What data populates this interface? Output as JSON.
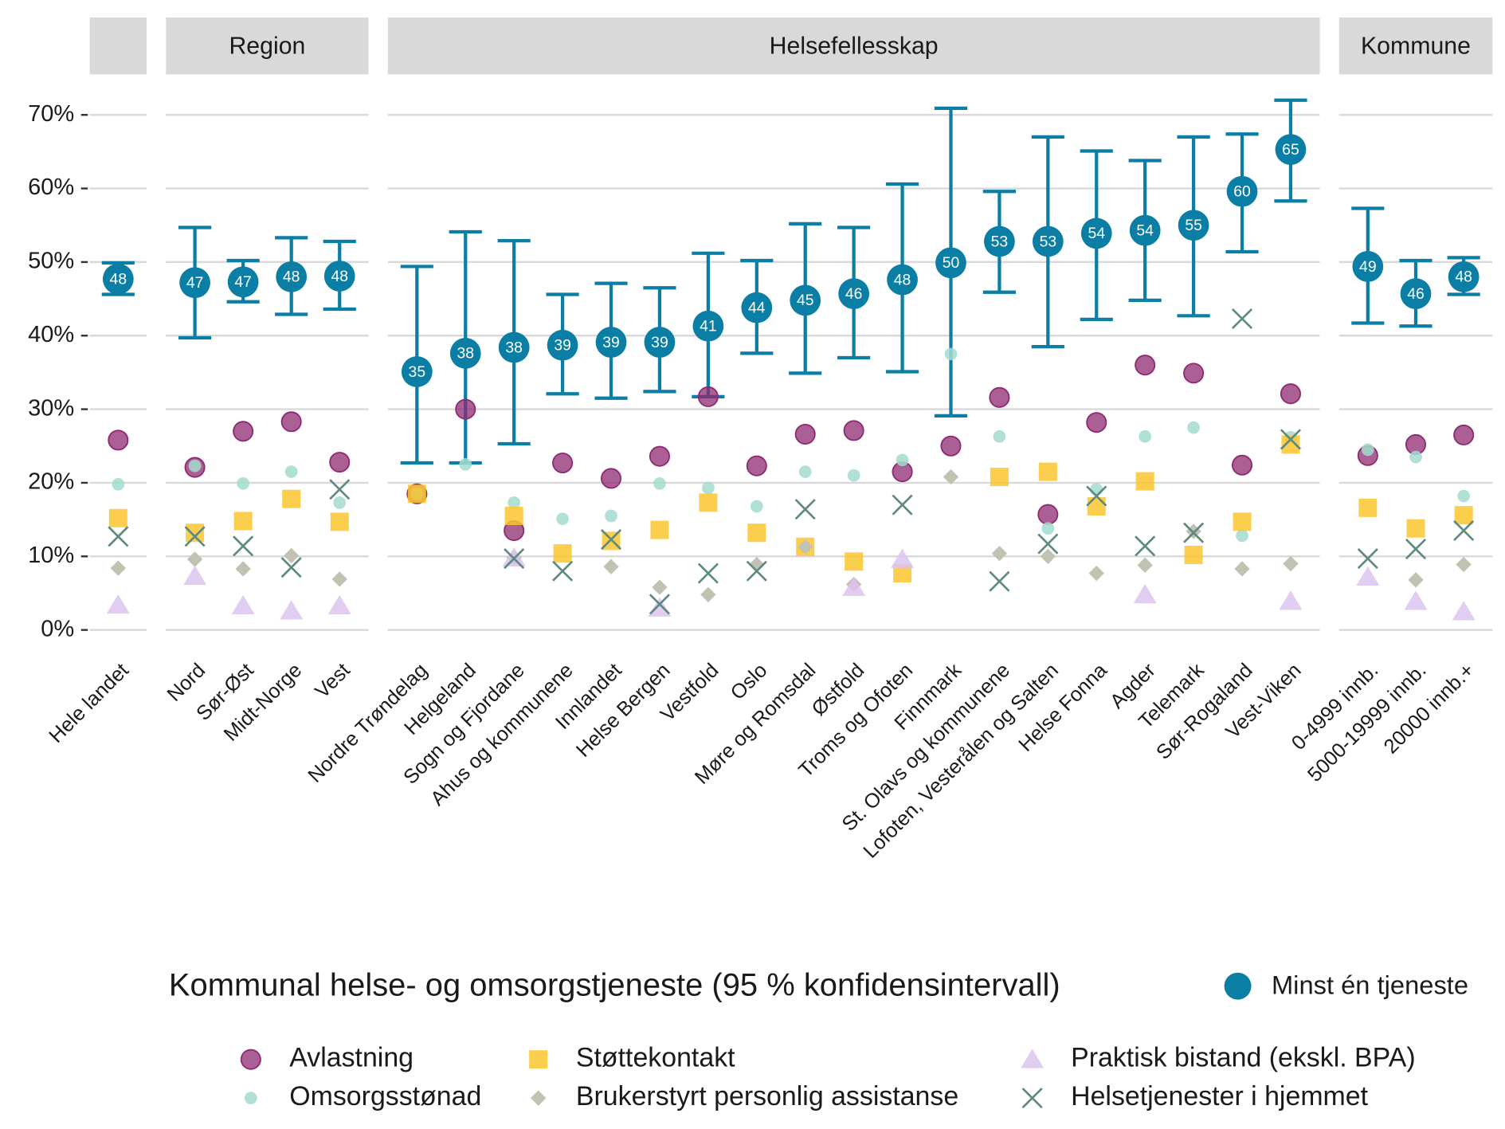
{
  "chart_data": {
    "type": "faceted-point",
    "ylim": [
      -3.3,
      73.8
    ],
    "yticks": [
      {
        "value": 0,
        "label": "0%"
      },
      {
        "value": 10,
        "label": "10%"
      },
      {
        "value": 20,
        "label": "20%"
      },
      {
        "value": 30,
        "label": "30%"
      },
      {
        "value": 40,
        "label": "40%"
      },
      {
        "value": 50,
        "label": "50%"
      },
      {
        "value": 60,
        "label": "60%"
      },
      {
        "value": 70,
        "label": "70%"
      }
    ],
    "grid": true,
    "panels": [
      {
        "categories": [
          "Hele landet"
        ]
      },
      {
        "title": "Region",
        "categories": [
          "Nord",
          "Sør-Øst",
          "Midt-Norge",
          "Vest"
        ]
      },
      {
        "title": "Helsefellesskap",
        "categories": [
          "Nordre Trøndelag",
          "Helgeland",
          "Sogn og Fjordane",
          "Ahus og kommunene",
          "Innlandet",
          "Helse Bergen",
          "Vestfold",
          "Oslo",
          "Møre og Romsdal",
          "Østfold",
          "Troms og Ofoten",
          "Finnmark",
          "St. Olavs og kommunene",
          "Lofoten, Vesterålen og Salten",
          "Helse Fonna",
          "Agder",
          "Telemark",
          "Sør-Rogaland",
          "Vest-Viken"
        ]
      },
      {
        "title": "Kommune",
        "categories": [
          "0-4999 innb.",
          "5000-19999 innb.",
          "20000 innb.+"
        ]
      }
    ],
    "legend_title": "Kommunal helse- og omsorgstjeneste (95 % konfidensintervall)",
    "interval_series": {
      "name": "Minst én tjeneste",
      "color": "#0a7ea4",
      "shape": "circle",
      "values": [
        47.7,
        47.2,
        47.3,
        48.0,
        48.1,
        35.1,
        37.6,
        38.4,
        38.7,
        39.1,
        39.1,
        41.3,
        43.8,
        44.8,
        45.7,
        47.6,
        49.9,
        52.8,
        52.8,
        53.9,
        54.3,
        55.0,
        59.6,
        65.3,
        49.4,
        45.7,
        48.0
      ],
      "value_labels": [
        "48",
        "47",
        "47",
        "48",
        "48",
        "35",
        "38",
        "38",
        "39",
        "39",
        "39",
        "41",
        "44",
        "45",
        "46",
        "48",
        "50",
        "53",
        "53",
        "54",
        "54",
        "55",
        "60",
        "65",
        "49",
        "46",
        "48"
      ],
      "lower": [
        45.6,
        39.7,
        44.6,
        42.9,
        43.6,
        22.7,
        22.7,
        25.3,
        32.1,
        31.5,
        32.4,
        31.7,
        37.6,
        34.9,
        37.0,
        35.1,
        29.1,
        45.9,
        38.5,
        42.2,
        44.8,
        42.7,
        51.4,
        58.3,
        41.7,
        41.3,
        45.6
      ],
      "upper": [
        49.9,
        54.7,
        50.2,
        53.3,
        52.8,
        49.4,
        54.1,
        52.9,
        45.6,
        47.1,
        46.5,
        51.2,
        50.2,
        55.2,
        54.7,
        60.6,
        70.9,
        59.6,
        67.0,
        65.1,
        63.8,
        67.0,
        67.4,
        72.0,
        57.3,
        50.2,
        50.6
      ]
    },
    "series": [
      {
        "name": "Avlastning",
        "color": "#8e2a72",
        "shape": "circle",
        "values": [
          25.8,
          22.1,
          27.0,
          28.3,
          22.8,
          18.5,
          30.0,
          13.5,
          22.7,
          20.6,
          23.6,
          31.7,
          22.3,
          26.6,
          27.1,
          21.5,
          25.0,
          31.6,
          15.7,
          28.2,
          36.0,
          34.9,
          22.4,
          32.1,
          23.7,
          25.2,
          26.5
        ]
      },
      {
        "name": "Omsorgsstønad",
        "color": "#a3dccf",
        "shape": "small-circle",
        "values": [
          19.8,
          22.3,
          19.9,
          21.5,
          17.3,
          18.5,
          22.5,
          17.3,
          15.1,
          15.5,
          19.9,
          19.3,
          16.8,
          21.5,
          21.0,
          23.1,
          37.5,
          26.3,
          13.8,
          19.1,
          26.3,
          27.5,
          12.8,
          26.2,
          24.5,
          23.5,
          18.2
        ]
      },
      {
        "name": "Støttekontakt",
        "color": "#fcc62e",
        "shape": "square",
        "values": [
          15.2,
          13.2,
          14.8,
          17.8,
          14.7,
          18.5,
          null,
          15.5,
          10.4,
          12.1,
          13.6,
          17.3,
          13.2,
          11.3,
          9.3,
          7.7,
          null,
          20.8,
          21.5,
          16.8,
          20.2,
          10.2,
          14.7,
          25.2,
          16.6,
          13.8,
          15.6
        ]
      },
      {
        "name": "Brukerstyrt personlig assistanse",
        "color": "#c2c2b2",
        "shape": "diamond",
        "values": [
          8.4,
          9.6,
          8.3,
          10.1,
          6.9,
          null,
          null,
          9.8,
          null,
          8.6,
          5.8,
          4.8,
          8.9,
          11.3,
          6.2,
          null,
          20.8,
          10.4,
          10.0,
          7.7,
          8.8,
          13.4,
          8.3,
          9.0,
          null,
          6.8,
          8.9
        ]
      },
      {
        "name": "Praktisk bistand (ekskl. BPA)",
        "color": "#dcc3f0",
        "shape": "triangle",
        "values": [
          3.4,
          7.3,
          3.3,
          2.6,
          3.3,
          null,
          null,
          9.8,
          null,
          null,
          3.0,
          null,
          null,
          null,
          5.8,
          9.6,
          null,
          null,
          null,
          null,
          4.8,
          null,
          null,
          3.9,
          7.2,
          3.9,
          2.5
        ]
      },
      {
        "name": "Helsetjenester i hjemmet",
        "color": "#5f8a7f",
        "shape": "x",
        "values": [
          12.7,
          12.7,
          11.4,
          8.5,
          19.1,
          null,
          null,
          9.7,
          8.0,
          12.3,
          3.5,
          7.7,
          8.0,
          16.4,
          null,
          17.0,
          null,
          6.6,
          11.7,
          18.2,
          11.4,
          13.2,
          42.3,
          25.9,
          9.7,
          11.0,
          13.5
        ]
      }
    ]
  }
}
